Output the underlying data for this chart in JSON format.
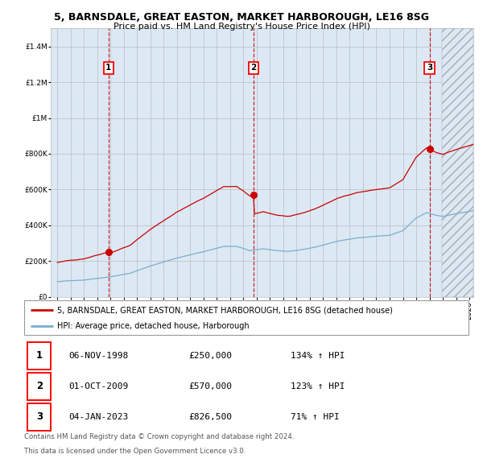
{
  "title": "5, BARNSDALE, GREAT EASTON, MARKET HARBOROUGH, LE16 8SG",
  "subtitle": "Price paid vs. HM Land Registry's House Price Index (HPI)",
  "ylim": [
    0,
    1500000
  ],
  "yticks": [
    0,
    200000,
    400000,
    600000,
    800000,
    1000000,
    1200000,
    1400000
  ],
  "xlim_start": 1994.5,
  "xlim_end": 2026.3,
  "sale_years": [
    1998.846,
    2009.75,
    2023.0
  ],
  "sale_prices": [
    250000,
    570000,
    826500
  ],
  "sale_labels": [
    "1",
    "2",
    "3"
  ],
  "legend_property": "5, BARNSDALE, GREAT EASTON, MARKET HARBOROUGH, LE16 8SG (detached house)",
  "legend_hpi": "HPI: Average price, detached house, Harborough",
  "footer_line1": "Contains HM Land Registry data © Crown copyright and database right 2024.",
  "footer_line2": "This data is licensed under the Open Government Licence v3.0.",
  "table_entries": [
    {
      "num": "1",
      "date": "06-NOV-1998",
      "price": "£250,000",
      "change": "134% ↑ HPI"
    },
    {
      "num": "2",
      "date": "01-OCT-2009",
      "price": "£570,000",
      "change": "123% ↑ HPI"
    },
    {
      "num": "3",
      "date": "04-JAN-2023",
      "price": "£826,500",
      "change": "71% ↑ HPI"
    }
  ],
  "property_line_color": "#cc0000",
  "hpi_line_color": "#7aadcc",
  "dashed_line_color": "#cc0000",
  "background_color": "#dce9f5",
  "future_start": 2023.92,
  "grid_color": "#bbbbbb"
}
